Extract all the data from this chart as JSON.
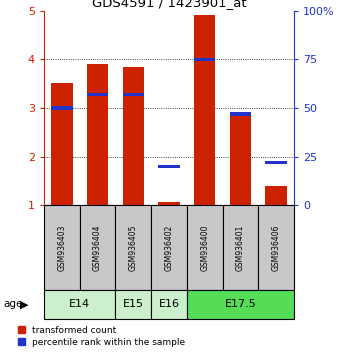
{
  "title": "GDS4591 / 1423901_at",
  "samples": [
    "GSM936403",
    "GSM936404",
    "GSM936405",
    "GSM936402",
    "GSM936400",
    "GSM936401",
    "GSM936406"
  ],
  "red_values": [
    3.52,
    3.9,
    3.85,
    1.06,
    4.9,
    2.85,
    1.4
  ],
  "blue_values": [
    50,
    57,
    57,
    20,
    75,
    47,
    22
  ],
  "ylim_left": [
    1,
    5
  ],
  "ylim_right": [
    0,
    100
  ],
  "yticks_left": [
    1,
    2,
    3,
    4,
    5
  ],
  "yticks_right": [
    0,
    25,
    50,
    75,
    100
  ],
  "age_groups": [
    {
      "label": "E14",
      "start": 0,
      "end": 2,
      "color": "#ccf0cc"
    },
    {
      "label": "E15",
      "start": 2,
      "end": 3,
      "color": "#ccf0cc"
    },
    {
      "label": "E16",
      "start": 3,
      "end": 4,
      "color": "#ccf0cc"
    },
    {
      "label": "E17.5",
      "start": 4,
      "end": 7,
      "color": "#55dd55"
    }
  ],
  "red_color": "#cc2200",
  "blue_color": "#2233cc",
  "bar_width": 0.6,
  "left_tick_color": "#cc2200",
  "right_tick_color": "#2233cc",
  "legend_red_label": "transformed count",
  "legend_blue_label": "percentile rank within the sample",
  "age_label": "age",
  "sample_box_color": "#c8c8c8"
}
